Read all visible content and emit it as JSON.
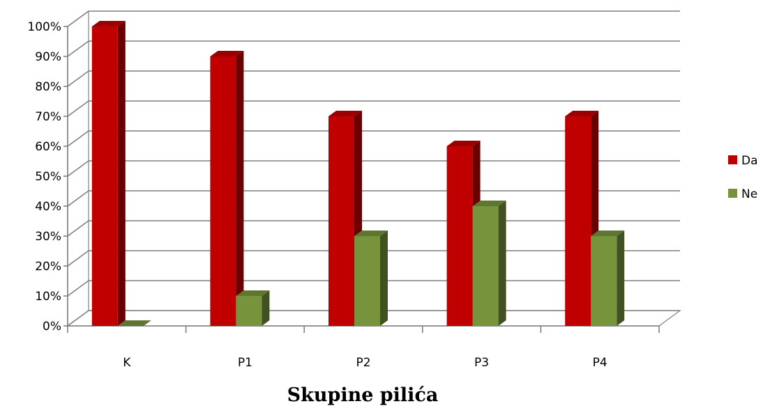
{
  "chart_data": {
    "type": "bar",
    "categories": [
      "K",
      "P1",
      "P2",
      "P3",
      "P4"
    ],
    "series": [
      {
        "name": "Da",
        "values": [
          100,
          90,
          70,
          60,
          70
        ],
        "color": "#C00000"
      },
      {
        "name": "Ne",
        "values": [
          0,
          10,
          30,
          40,
          30
        ],
        "color": "#77933C"
      }
    ],
    "xlabel": "Skupine pilića",
    "ylabel": "",
    "ylim": [
      0,
      100
    ],
    "yticks": [
      "0%",
      "10%",
      "20%",
      "30%",
      "40%",
      "50%",
      "60%",
      "70%",
      "80%",
      "90%",
      "100%"
    ],
    "grid": true,
    "legend": "right",
    "style": "3d-clustered-column"
  }
}
